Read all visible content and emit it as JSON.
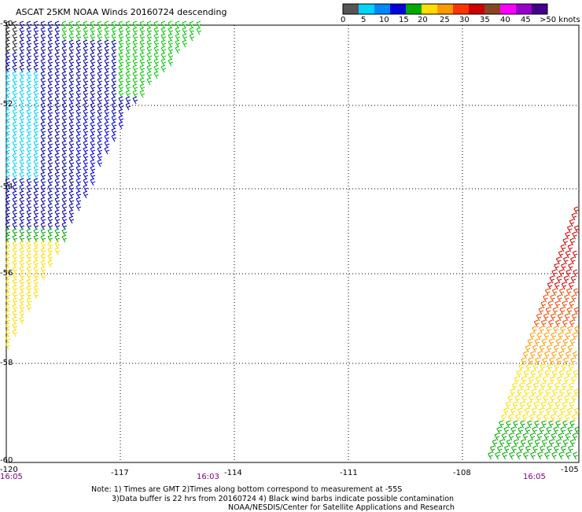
{
  "title": "ASCAT 25KM NOAA Winds 20160724 descending",
  "legend": {
    "colors": [
      "#555555",
      "#00d4ff",
      "#0088ff",
      "#0000dd",
      "#00aa00",
      "#ffdd00",
      "#ff9900",
      "#ff3300",
      "#cc0000",
      "#884422",
      "#ff00ff",
      "#9900cc",
      "#440088"
    ],
    "labels": [
      "0",
      "5",
      "10",
      "15",
      "20",
      "25",
      "30",
      "35",
      "40",
      "45",
      ">50 knots"
    ]
  },
  "lon_labels": [
    "-120",
    "-117",
    "-114",
    "-111",
    "-108",
    "-105"
  ],
  "lat_labels": [
    "-50",
    "-52",
    "-54",
    "-56",
    "-58",
    "-60"
  ],
  "time_labels": [
    "16:05",
    "16:03",
    "16:05"
  ],
  "notes": {
    "line1": "Note: 1) Times are GMT 2)Times along bottom correspond to measurement at -55S",
    "line2": "3)Data buffer is 22 hrs from 20160724 4) Black wind barbs indicate possible contamination",
    "line3": "NOAA/NESDIS/Center for Satellite Applications and Research"
  }
}
